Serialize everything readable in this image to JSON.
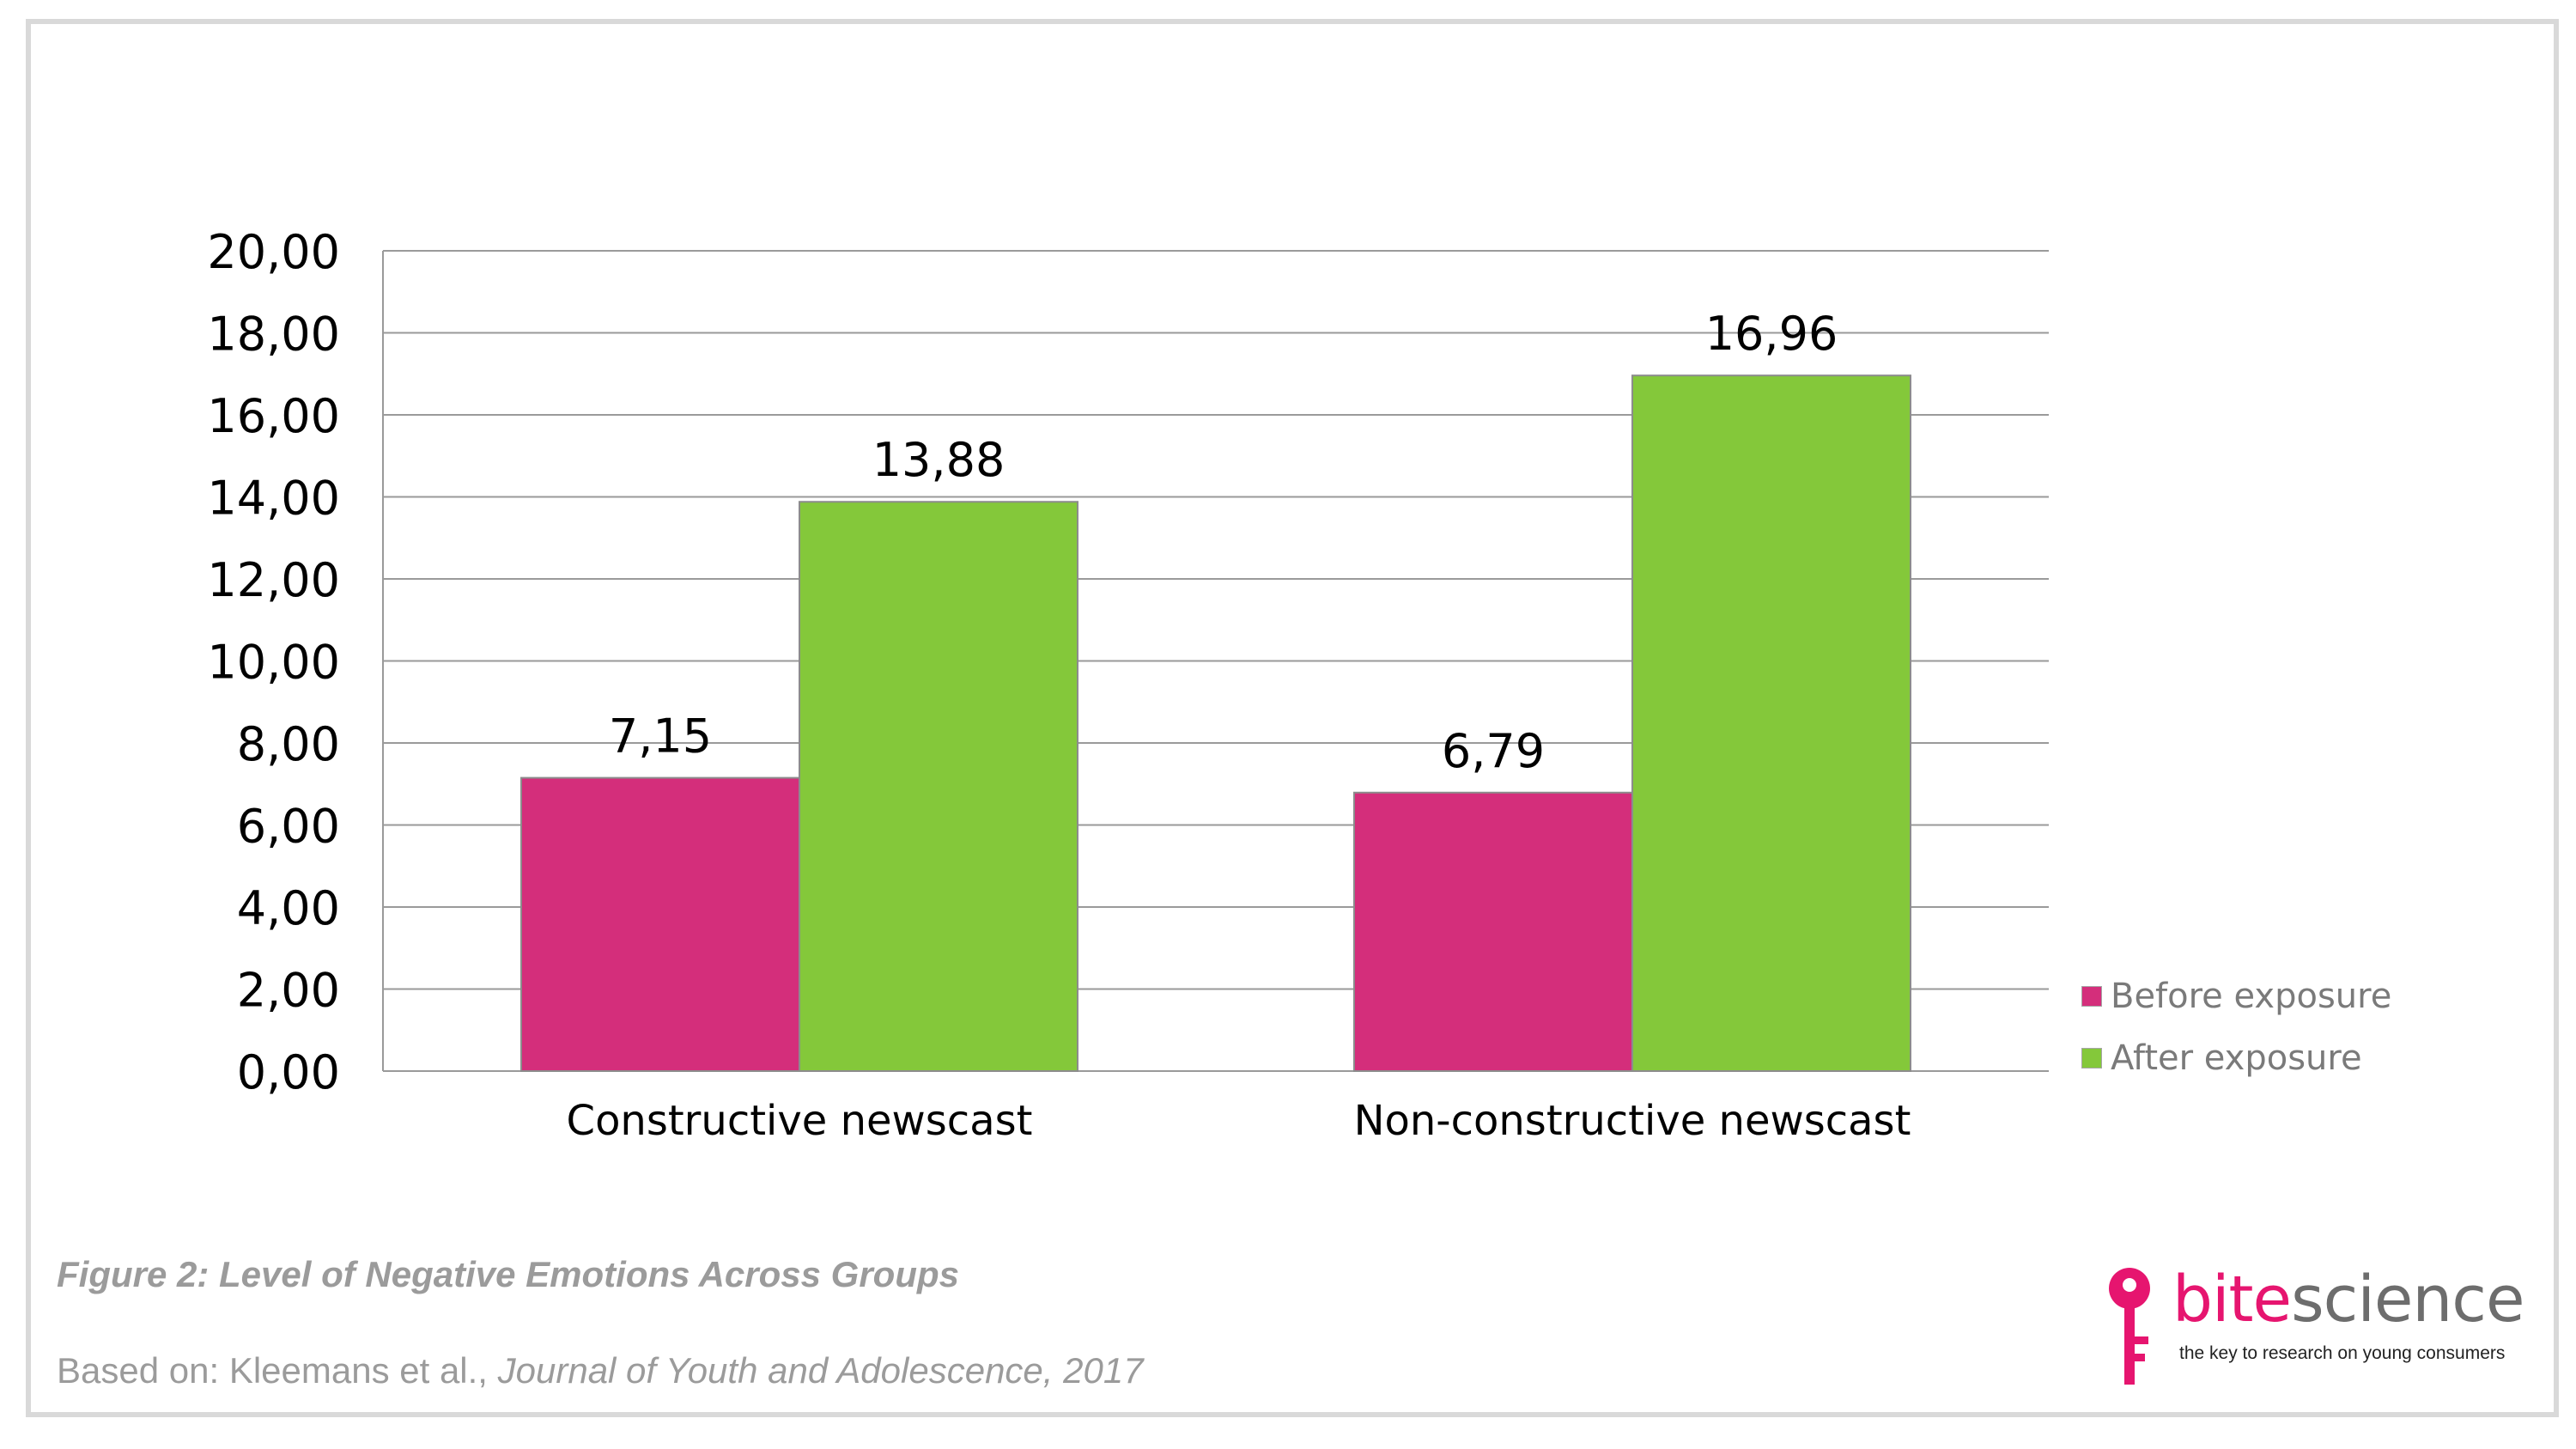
{
  "chart_data": {
    "type": "bar",
    "categories": [
      "Constructive newscast",
      "Non-constructive newscast"
    ],
    "series": [
      {
        "name": "Before exposure",
        "values": [
          7.15,
          6.79
        ],
        "labels": [
          "7,15",
          "6,79"
        ],
        "color": "#d42e7b"
      },
      {
        "name": "After exposure",
        "values": [
          13.88,
          16.96
        ],
        "labels": [
          "13,88",
          "16,96"
        ],
        "color": "#84c83a"
      }
    ],
    "ylim": [
      0,
      20
    ],
    "yticks": [
      0,
      2,
      4,
      6,
      8,
      10,
      12,
      14,
      16,
      18,
      20
    ],
    "ytick_labels": [
      "0,00",
      "2,00",
      "4,00",
      "6,00",
      "8,00",
      "10,00",
      "12,00",
      "14,00",
      "16,00",
      "18,00",
      "20,00"
    ],
    "xlabel": "",
    "ylabel": "",
    "grid": true,
    "legend_position": "right-bottom"
  },
  "caption": "Figure 2: Level of Negative Emotions Across Groups",
  "source": {
    "prefix": "Based on: Kleemans et al., ",
    "citation": "Journal of Youth and Adolescence, 2017"
  },
  "logo": {
    "brand_part1": "bite",
    "brand_part2": "science",
    "tagline": "the key to research on young consumers",
    "accent_color": "#e6156f"
  }
}
